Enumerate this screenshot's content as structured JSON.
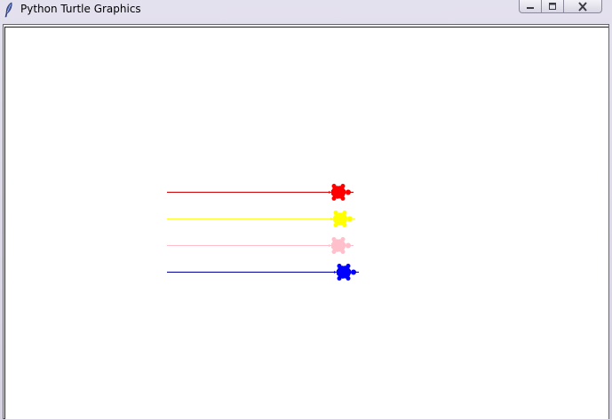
{
  "window": {
    "title": "Python Turtle Graphics",
    "controls": {
      "minimize_icon": "minimize-icon",
      "maximize_icon": "maximize-icon",
      "close_icon": "close-icon"
    }
  },
  "canvas": {
    "background": "#ffffff",
    "turtles": [
      {
        "color": "#ff0000",
        "trail_color": "#cc0000",
        "icon": "turtle-icon"
      },
      {
        "color": "#ffff00",
        "trail_color": "#ffff33",
        "icon": "turtle-icon"
      },
      {
        "color": "#ffc0cb",
        "trail_color": "#ffc0cb",
        "icon": "turtle-icon"
      },
      {
        "color": "#0000ff",
        "trail_color": "#000099",
        "icon": "turtle-icon"
      }
    ]
  }
}
